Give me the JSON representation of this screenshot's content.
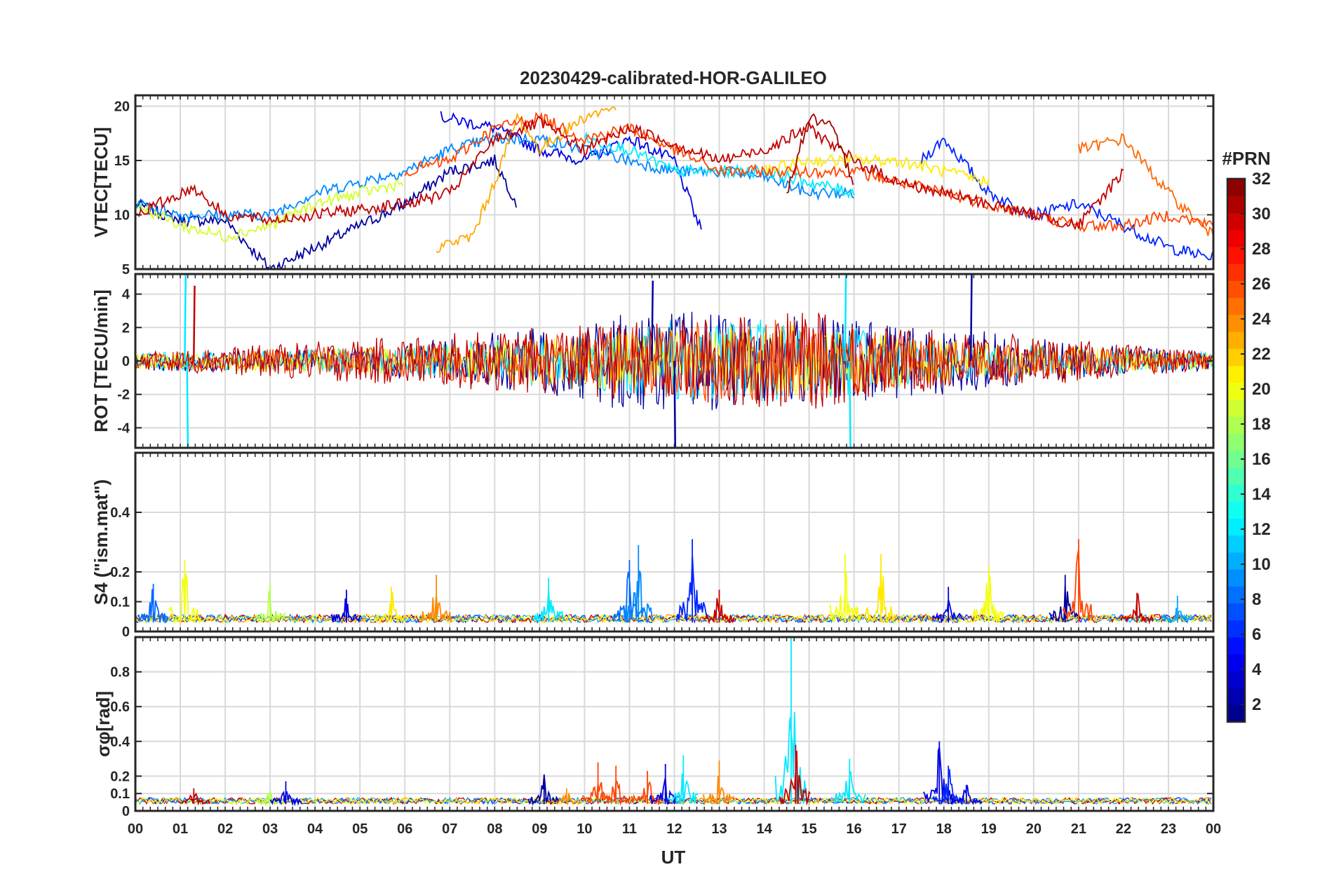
{
  "chart_data": {
    "title": "20230429-calibrated-HOR-GALILEO",
    "type": "line",
    "xlabel": "UT",
    "x_ticks": [
      "00",
      "01",
      "02",
      "03",
      "04",
      "05",
      "06",
      "07",
      "08",
      "09",
      "10",
      "11",
      "12",
      "13",
      "14",
      "15",
      "16",
      "17",
      "18",
      "19",
      "20",
      "21",
      "22",
      "23",
      "00"
    ],
    "xlim": [
      0,
      24
    ],
    "grid": true,
    "colorbar": {
      "label": "#PRN",
      "range": [
        1,
        32
      ],
      "ticks": [
        "2",
        "4",
        "6",
        "8",
        "10",
        "12",
        "14",
        "16",
        "18",
        "20",
        "22",
        "24",
        "26",
        "28",
        "30",
        "32"
      ],
      "colormap": "jet"
    },
    "panels": [
      {
        "ylabel": "VTEC[TECU]",
        "ylim": [
          5,
          21
        ],
        "y_ticks": [
          5,
          10,
          15,
          20
        ],
        "series": [
          {
            "prn": 2,
            "points": [
              [
                0,
                11
              ],
              [
                1,
                9.5
              ],
              [
                2,
                9.5
              ],
              [
                3,
                5
              ],
              [
                4,
                7
              ],
              [
                5,
                9
              ],
              [
                6,
                11
              ],
              [
                7,
                14
              ],
              [
                8,
                15
              ],
              [
                8.5,
                11
              ]
            ]
          },
          {
            "prn": 4,
            "points": [
              [
                6.8,
                19
              ],
              [
                8,
                18
              ],
              [
                9,
                16
              ],
              [
                10,
                15
              ],
              [
                11,
                17
              ],
              [
                12,
                15
              ],
              [
                12.6,
                8.5
              ]
            ]
          },
          {
            "prn": 6,
            "points": [
              [
                17.5,
                15
              ],
              [
                18,
                17
              ],
              [
                19,
                12
              ],
              [
                20,
                10
              ],
              [
                21,
                11
              ],
              [
                22,
                9
              ],
              [
                23,
                7
              ],
              [
                24,
                6
              ]
            ]
          },
          {
            "prn": 9,
            "points": [
              [
                0,
                11
              ],
              [
                1,
                10
              ],
              [
                2,
                10
              ],
              [
                3,
                10
              ],
              [
                4,
                12
              ],
              [
                5,
                13
              ],
              [
                6,
                14
              ],
              [
                7,
                16
              ],
              [
                8,
                17
              ],
              [
                9,
                17
              ],
              [
                10,
                16
              ],
              [
                11,
                15
              ],
              [
                12,
                14
              ],
              [
                13,
                14
              ],
              [
                14,
                13.5
              ],
              [
                15,
                12
              ],
              [
                16,
                12
              ]
            ]
          },
          {
            "prn": 12,
            "points": [
              [
                10,
                17
              ],
              [
                11,
                16
              ],
              [
                12,
                14
              ],
              [
                13,
                14
              ],
              [
                14,
                14
              ],
              [
                15,
                13
              ],
              [
                16,
                12
              ]
            ]
          },
          {
            "prn": 19,
            "points": [
              [
                0,
                11
              ],
              [
                1,
                9
              ],
              [
                2,
                8
              ],
              [
                3,
                9
              ],
              [
                4,
                11
              ],
              [
                5,
                12
              ],
              [
                6,
                13
              ]
            ]
          },
          {
            "prn": 21,
            "points": [
              [
                14,
                14
              ],
              [
                15,
                15
              ],
              [
                16,
                15
              ],
              [
                17,
                15
              ],
              [
                18,
                14
              ],
              [
                19,
                13
              ]
            ]
          },
          {
            "prn": 23,
            "points": [
              [
                6.7,
                7
              ],
              [
                7.5,
                8
              ],
              [
                8,
                13
              ],
              [
                8.5,
                19
              ],
              [
                9,
                16
              ],
              [
                10,
                19
              ],
              [
                10.7,
                20
              ]
            ]
          },
          {
            "prn": 25,
            "points": [
              [
                21,
                16
              ],
              [
                22,
                17
              ],
              [
                23,
                12
              ],
              [
                24,
                8
              ]
            ]
          },
          {
            "prn": 26,
            "points": [
              [
                6,
                14
              ],
              [
                7,
                15
              ],
              [
                8,
                18
              ],
              [
                9,
                19
              ],
              [
                10,
                17
              ],
              [
                11,
                18
              ],
              [
                12,
                16
              ],
              [
                13,
                14
              ],
              [
                14,
                14
              ],
              [
                15,
                14
              ],
              [
                16,
                14
              ],
              [
                17,
                13
              ],
              [
                18,
                12
              ],
              [
                19,
                11
              ],
              [
                20,
                10
              ],
              [
                21,
                9
              ],
              [
                22,
                9
              ],
              [
                23,
                10
              ],
              [
                24,
                9
              ]
            ]
          },
          {
            "prn": 30,
            "points": [
              [
                0,
                10
              ],
              [
                1.3,
                12.5
              ],
              [
                2,
                10
              ],
              [
                3,
                9.5
              ],
              [
                6,
                11
              ],
              [
                7,
                12
              ],
              [
                8,
                17
              ],
              [
                9,
                18.5
              ],
              [
                10,
                16
              ],
              [
                11,
                18
              ],
              [
                13,
                15
              ],
              [
                14,
                16
              ],
              [
                15,
                18
              ],
              [
                16,
                15
              ],
              [
                17,
                13
              ],
              [
                18,
                12
              ],
              [
                21,
                9
              ],
              [
                22,
                14
              ]
            ]
          },
          {
            "prn": 31,
            "points": [
              [
                14.5,
                12
              ],
              [
                15,
                19
              ],
              [
                15.5,
                18
              ],
              [
                16,
                13
              ]
            ]
          }
        ]
      },
      {
        "ylabel": "ROT [TECU/min]",
        "ylim": [
          -5.2,
          5.2
        ],
        "y_ticks": [
          -4,
          -2,
          0,
          2,
          4
        ],
        "series": [
          {
            "prn": 2,
            "envelope": [
              [
                0,
                0.6
              ],
              [
                5.5,
                0.7
              ],
              [
                6,
                1.2
              ],
              [
                9,
                2
              ],
              [
                11,
                3
              ],
              [
                12.5,
                3
              ],
              [
                16,
                2.5
              ],
              [
                18,
                2
              ],
              [
                20,
                1.5
              ],
              [
                21,
                1
              ],
              [
                24,
                0.6
              ]
            ]
          },
          {
            "prn": 12,
            "envelope": [
              [
                0,
                0.5
              ],
              [
                6,
                0.8
              ],
              [
                10,
                1.8
              ],
              [
                12,
                2.5
              ],
              [
                15,
                2.5
              ],
              [
                16,
                2
              ],
              [
                18,
                1.2
              ],
              [
                24,
                0.5
              ]
            ]
          },
          {
            "prn": 20,
            "envelope": [
              [
                0,
                0.5
              ],
              [
                6,
                0.8
              ],
              [
                12,
                2
              ],
              [
                15,
                2.2
              ],
              [
                17,
                1.5
              ],
              [
                19,
                1
              ],
              [
                24,
                0.5
              ]
            ]
          },
          {
            "prn": 26,
            "envelope": [
              [
                0,
                0.5
              ],
              [
                6,
                1
              ],
              [
                10,
                1.8
              ],
              [
                13,
                2.5
              ],
              [
                15,
                2.5
              ],
              [
                17,
                1.5
              ],
              [
                20,
                1
              ],
              [
                24,
                0.5
              ]
            ]
          },
          {
            "prn": 30,
            "envelope": [
              [
                0,
                0.5
              ],
              [
                6,
                1.5
              ],
              [
                9,
                2
              ],
              [
                12,
                2.5
              ],
              [
                15,
                3
              ],
              [
                17,
                2
              ],
              [
                20,
                1.5
              ],
              [
                24,
                0.5
              ]
            ]
          }
        ],
        "spikes": [
          {
            "prn": 12,
            "x": 1.1,
            "y": 5.2
          },
          {
            "prn": 12,
            "x": 1.15,
            "y": -5.2
          },
          {
            "prn": 30,
            "x": 1.3,
            "y": 4.5
          },
          {
            "prn": 2,
            "x": 11.5,
            "y": 4.8
          },
          {
            "prn": 2,
            "x": 12,
            "y": -5.2
          },
          {
            "prn": 12,
            "x": 15.8,
            "y": 5.2
          },
          {
            "prn": 12,
            "x": 15.9,
            "y": -5.2
          },
          {
            "prn": 2,
            "x": 18.6,
            "y": 5.2
          }
        ]
      },
      {
        "ylabel": "S4 (\"ism.mat\")",
        "ylim": [
          0,
          0.6
        ],
        "y_ticks": [
          0,
          0.1,
          0.2,
          0.4
        ],
        "baseline": 0.03,
        "peaks": [
          {
            "prn": 8,
            "x": 0.4,
            "y": 0.16
          },
          {
            "prn": 20,
            "x": 1.1,
            "y": 0.24
          },
          {
            "prn": 18,
            "x": 3.0,
            "y": 0.16
          },
          {
            "prn": 4,
            "x": 4.7,
            "y": 0.14
          },
          {
            "prn": 21,
            "x": 5.7,
            "y": 0.15
          },
          {
            "prn": 24,
            "x": 6.7,
            "y": 0.19
          },
          {
            "prn": 12,
            "x": 9.2,
            "y": 0.18
          },
          {
            "prn": 8,
            "x": 11.0,
            "y": 0.24
          },
          {
            "prn": 9,
            "x": 11.2,
            "y": 0.29
          },
          {
            "prn": 6,
            "x": 12.4,
            "y": 0.31
          },
          {
            "prn": 30,
            "x": 13.0,
            "y": 0.14
          },
          {
            "prn": 20,
            "x": 15.8,
            "y": 0.26
          },
          {
            "prn": 21,
            "x": 16.6,
            "y": 0.26
          },
          {
            "prn": 4,
            "x": 18.1,
            "y": 0.15
          },
          {
            "prn": 20,
            "x": 19.0,
            "y": 0.22
          },
          {
            "prn": 2,
            "x": 20.7,
            "y": 0.19
          },
          {
            "prn": 26,
            "x": 21.0,
            "y": 0.31
          },
          {
            "prn": 30,
            "x": 22.3,
            "y": 0.13
          },
          {
            "prn": 10,
            "x": 23.2,
            "y": 0.12
          }
        ]
      },
      {
        "ylabel": "σφ[rad]",
        "ylim": [
          0,
          1
        ],
        "y_ticks": [
          0,
          0.1,
          0.2,
          0.4,
          0.6,
          0.8
        ],
        "baseline": 0.04,
        "peaks": [
          {
            "prn": 30,
            "x": 1.3,
            "y": 0.13
          },
          {
            "prn": 18,
            "x": 3.0,
            "y": 0.12
          },
          {
            "prn": 4,
            "x": 3.35,
            "y": 0.17
          },
          {
            "prn": 2,
            "x": 9.1,
            "y": 0.21
          },
          {
            "prn": 24,
            "x": 9.6,
            "y": 0.13
          },
          {
            "prn": 26,
            "x": 10.3,
            "y": 0.28
          },
          {
            "prn": 26,
            "x": 10.7,
            "y": 0.26
          },
          {
            "prn": 26,
            "x": 11.4,
            "y": 0.23
          },
          {
            "prn": 4,
            "x": 11.8,
            "y": 0.27
          },
          {
            "prn": 12,
            "x": 12.2,
            "y": 0.32
          },
          {
            "prn": 24,
            "x": 13.0,
            "y": 0.29
          },
          {
            "prn": 12,
            "x": 14.6,
            "y": 1.0
          },
          {
            "prn": 30,
            "x": 14.7,
            "y": 0.38
          },
          {
            "prn": 12,
            "x": 15.9,
            "y": 0.3
          },
          {
            "prn": 4,
            "x": 17.9,
            "y": 0.4
          },
          {
            "prn": 6,
            "x": 18.1,
            "y": 0.26
          },
          {
            "prn": 4,
            "x": 18.5,
            "y": 0.15
          }
        ]
      }
    ]
  }
}
